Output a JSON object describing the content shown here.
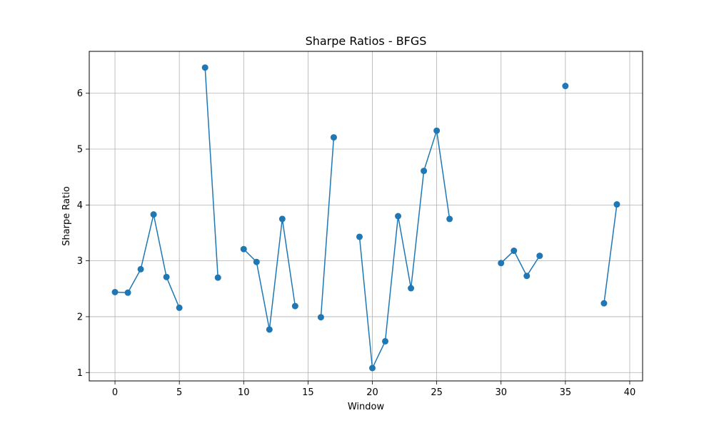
{
  "chart_data": {
    "type": "line",
    "title": "Sharpe Ratios - BFGS",
    "xlabel": "Window",
    "ylabel": "Sharpe Ratio",
    "xlim": [
      -2,
      41
    ],
    "ylim": [
      0.85,
      6.75
    ],
    "xticks": [
      0,
      5,
      10,
      15,
      20,
      25,
      30,
      35,
      40
    ],
    "yticks": [
      1,
      2,
      3,
      4,
      5,
      6
    ],
    "grid": true,
    "color": "#1f77b4",
    "series": [
      {
        "x": [
          0,
          1,
          2,
          3,
          4,
          5,
          6,
          7,
          8,
          9,
          10,
          11,
          12,
          13,
          14,
          15,
          16,
          17,
          18,
          19,
          20,
          21,
          22,
          23,
          24,
          25,
          26,
          27,
          28,
          29,
          30,
          31,
          32,
          33,
          34,
          35,
          36,
          37,
          38,
          39
        ],
        "values": [
          2.44,
          2.43,
          2.85,
          3.83,
          2.71,
          2.16,
          null,
          6.46,
          2.7,
          null,
          3.21,
          2.98,
          1.77,
          3.75,
          2.19,
          null,
          1.99,
          5.21,
          null,
          3.43,
          1.08,
          1.56,
          3.8,
          2.51,
          4.61,
          5.33,
          3.75,
          null,
          null,
          null,
          2.96,
          3.18,
          2.73,
          3.09,
          null,
          6.13,
          null,
          null,
          2.24,
          4.01
        ]
      }
    ]
  }
}
